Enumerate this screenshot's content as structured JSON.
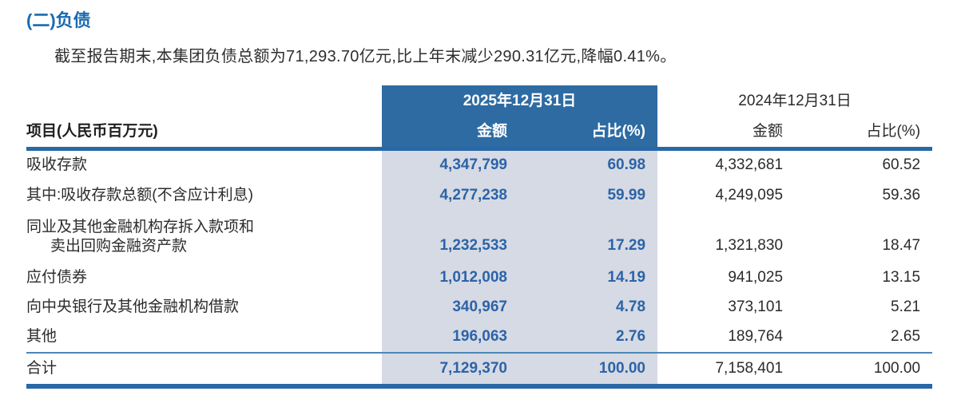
{
  "page": {
    "title": "(二)负债",
    "paragraph": "截至报告期末,本集团负债总额为71,293.70亿元,比上年末减少290.31亿元,降幅0.41%。"
  },
  "table": {
    "item_header": "项目(人民币百万元)",
    "col_groups": [
      {
        "date": "2025年12月31日",
        "amount": "金额",
        "ratio": "占比(%)"
      },
      {
        "date": "2024年12月31日",
        "amount": "金额",
        "ratio": "占比(%)"
      }
    ],
    "rows": [
      {
        "label": "吸收存款",
        "a2025": "4,347,799",
        "p2025": "60.98",
        "a2024": "4,332,681",
        "p2024": "60.52"
      },
      {
        "label": "其中:吸收存款总额(不含应计利息)",
        "a2025": "4,277,238",
        "p2025": "59.99",
        "a2024": "4,249,095",
        "p2024": "59.36"
      },
      {
        "label": "同业及其他金融机构存拆入款项和",
        "label2": "卖出回购金融资产款",
        "a2025": "1,232,533",
        "p2025": "17.29",
        "a2024": "1,321,830",
        "p2024": "18.47"
      },
      {
        "label": "应付债券",
        "a2025": "1,012,008",
        "p2025": "14.19",
        "a2024": "941,025",
        "p2024": "13.15"
      },
      {
        "label": "向中央银行及其他金融机构借款",
        "a2025": "340,967",
        "p2025": "4.78",
        "a2024": "373,101",
        "p2024": "5.21"
      },
      {
        "label": "其他",
        "a2025": "196,063",
        "p2025": "2.76",
        "a2024": "189,764",
        "p2024": "2.65"
      }
    ],
    "total": {
      "label": "合计",
      "a2025": "7,129,370",
      "p2025": "100.00",
      "a2024": "7,158,401",
      "p2024": "100.00"
    }
  },
  "colors": {
    "title_blue": "#1a6ab1",
    "header_block_blue": "#2e6ba3",
    "rule_blue": "#2868a8",
    "thin_rule_blue": "#4d86b5",
    "highlight_column_bg": "#d5dae4",
    "highlight_value_blue": "#2d63a7"
  }
}
